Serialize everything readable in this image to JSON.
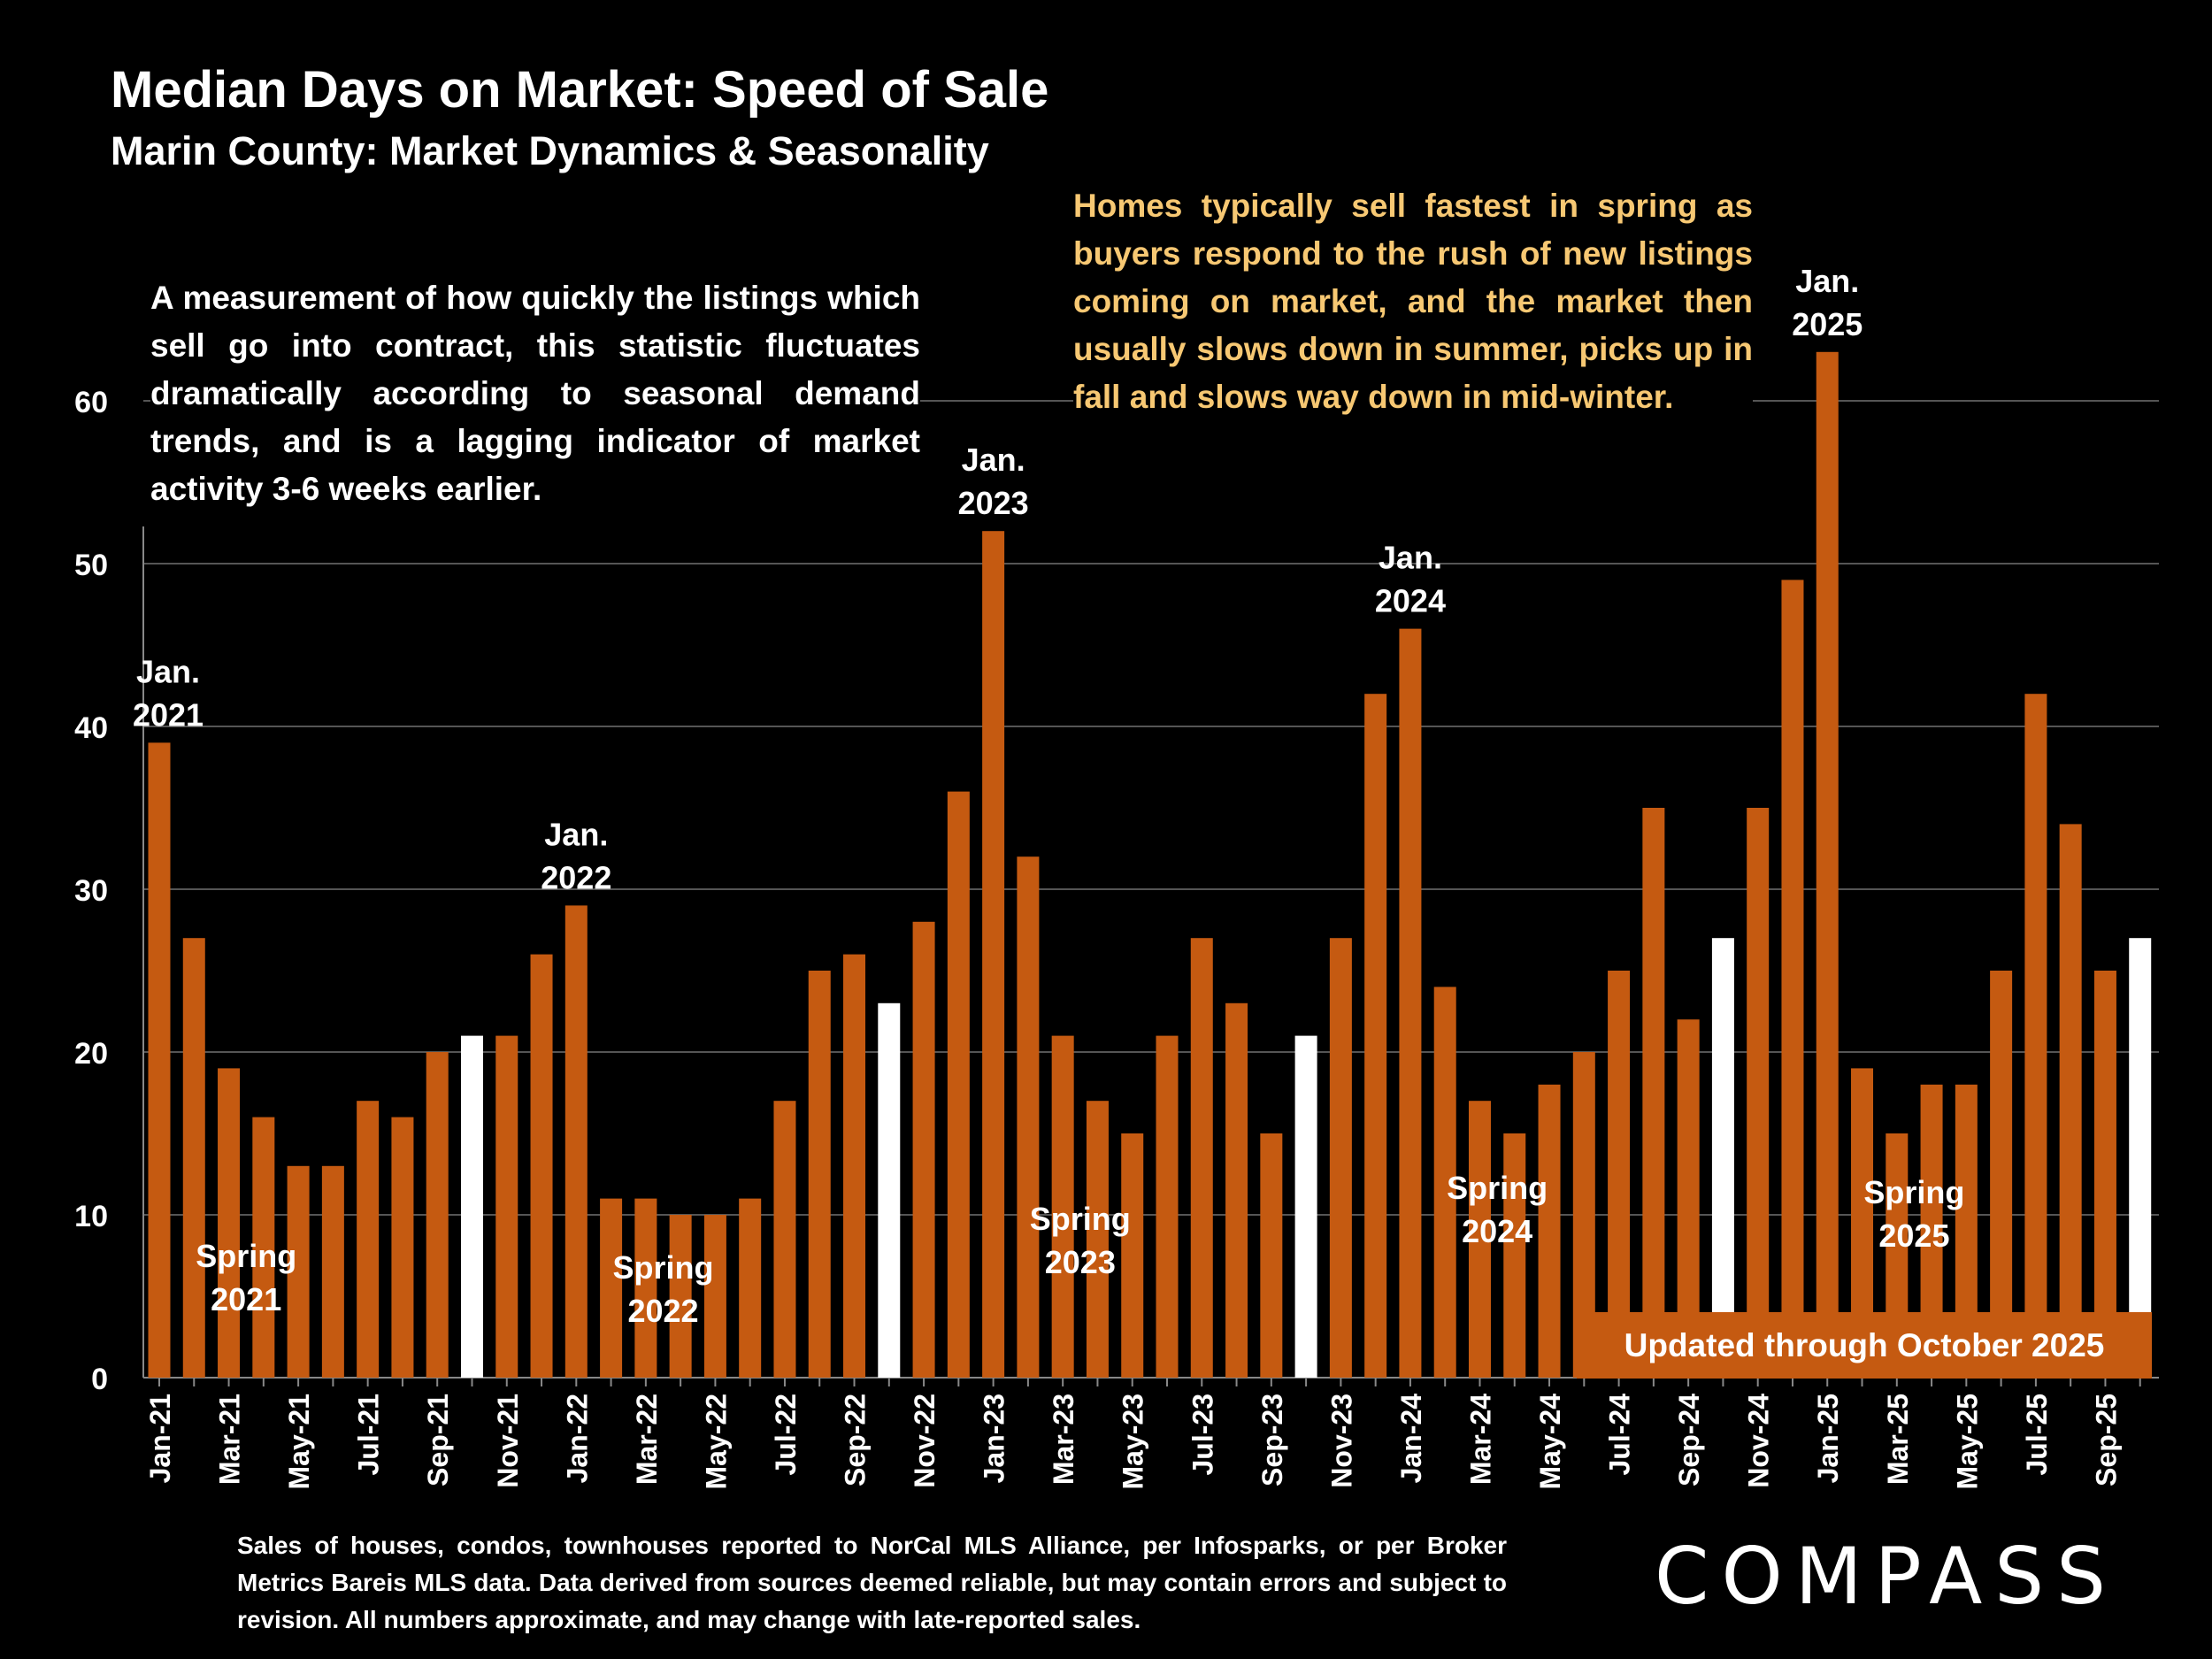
{
  "header": {
    "title": "Median Days on Market:  Speed of Sale",
    "subtitle": "Marin County: Market Dynamics & Seasonality"
  },
  "notes": {
    "left": "A measurement of how quickly the listings which sell go into contract, this statistic fluctuates dramatically according to seasonal demand trends, and is a lagging indicator of market activity 3-6 weeks earlier.",
    "right": "Homes typically sell fastest in spring as buyers respond to the rush of new listings coming on market, and the market then usually slows down in summer, picks up in fall and slows way down in mid-winter."
  },
  "updated_label": "Updated through October 2025",
  "footnote": "Sales of houses, condos, townhouses reported to NorCal MLS Alliance, per Infosparks, or per Broker Metrics Bareis MLS data. Data derived from sources deemed reliable, but may contain errors and subject to revision. All numbers approximate, and may change with late-reported sales.",
  "logo": "COMPASS",
  "colors": {
    "bar": "#c55a11",
    "highlight": "#ffffff",
    "note_right": "#f7c873",
    "gridline": "#555555"
  },
  "chart_data": {
    "type": "bar",
    "ylim": [
      0,
      60
    ],
    "yticks": [
      0,
      10,
      20,
      30,
      40,
      50,
      60
    ],
    "grid": true,
    "categories": [
      "Jan-21",
      "Feb-21",
      "Mar-21",
      "Apr-21",
      "May-21",
      "Jun-21",
      "Jul-21",
      "Aug-21",
      "Sep-21",
      "Oct-21",
      "Nov-21",
      "Dec-21",
      "Jan-22",
      "Feb-22",
      "Mar-22",
      "Apr-22",
      "May-22",
      "Jun-22",
      "Jul-22",
      "Aug-22",
      "Sep-22",
      "Oct-22",
      "Nov-22",
      "Dec-22",
      "Jan-23",
      "Feb-23",
      "Mar-23",
      "Apr-23",
      "May-23",
      "Jun-23",
      "Jul-23",
      "Aug-23",
      "Sep-23",
      "Oct-23",
      "Nov-23",
      "Dec-23",
      "Jan-24",
      "Feb-24",
      "Mar-24",
      "Apr-24",
      "May-24",
      "Jun-24",
      "Jul-24",
      "Aug-24",
      "Sep-24",
      "Oct-24",
      "Nov-24",
      "Dec-24",
      "Jan-25",
      "Feb-25",
      "Mar-25",
      "Apr-25",
      "May-25",
      "Jun-25",
      "Jul-25",
      "Aug-25",
      "Sep-25",
      "Oct-25"
    ],
    "tick_labels": [
      "Jan-21",
      "Mar-21",
      "May-21",
      "Jul-21",
      "Sep-21",
      "Nov-21",
      "Jan-22",
      "Mar-22",
      "May-22",
      "Jul-22",
      "Sep-22",
      "Nov-22",
      "Jan-23",
      "Mar-23",
      "May-23",
      "Jul-23",
      "Sep-23",
      "Nov-23",
      "Jan-24",
      "Mar-24",
      "May-24",
      "Jul-24",
      "Sep-24",
      "Nov-24",
      "Jan-25",
      "Mar-25",
      "May-25",
      "Jul-25",
      "Sep-25"
    ],
    "values": [
      39,
      27,
      19,
      16,
      13,
      13,
      17,
      16,
      20,
      21,
      21,
      26,
      29,
      11,
      11,
      10,
      10,
      11,
      17,
      25,
      26,
      23,
      28,
      36,
      52,
      32,
      21,
      17,
      15,
      21,
      27,
      23,
      15,
      21,
      27,
      42,
      46,
      24,
      17,
      15,
      18,
      20,
      25,
      35,
      22,
      27,
      35,
      49,
      63,
      19,
      15,
      18,
      18,
      25,
      42,
      34,
      25,
      27
    ],
    "highlighted": [
      "Oct-21",
      "Oct-22",
      "Oct-23",
      "Oct-24",
      "Oct-25"
    ],
    "annotations": [
      {
        "text": [
          "Jan.",
          "2021"
        ],
        "at": "Jan-21",
        "style": "peak"
      },
      {
        "text": [
          "Jan.",
          "2022"
        ],
        "at": "Jan-22",
        "style": "peak"
      },
      {
        "text": [
          "Jan.",
          "2023"
        ],
        "at": "Jan-23",
        "style": "peak"
      },
      {
        "text": [
          "Jan.",
          "2024"
        ],
        "at": "Jan-24",
        "style": "peak"
      },
      {
        "text": [
          "Jan.",
          "2025"
        ],
        "at": "Jan-25",
        "style": "peak"
      },
      {
        "text": [
          "Spring",
          "2021"
        ],
        "at": "Apr-21",
        "style": "inside"
      },
      {
        "text": [
          "Spring",
          "2022"
        ],
        "at": "Apr-22",
        "style": "inside"
      },
      {
        "text": [
          "Spring",
          "2023"
        ],
        "at": "Apr-23",
        "style": "inside"
      },
      {
        "text": [
          "Spring",
          "2024"
        ],
        "at": "Apr-24",
        "style": "inside"
      },
      {
        "text": [
          "Spring",
          "2025"
        ],
        "at": "Apr-25",
        "style": "inside"
      }
    ]
  }
}
